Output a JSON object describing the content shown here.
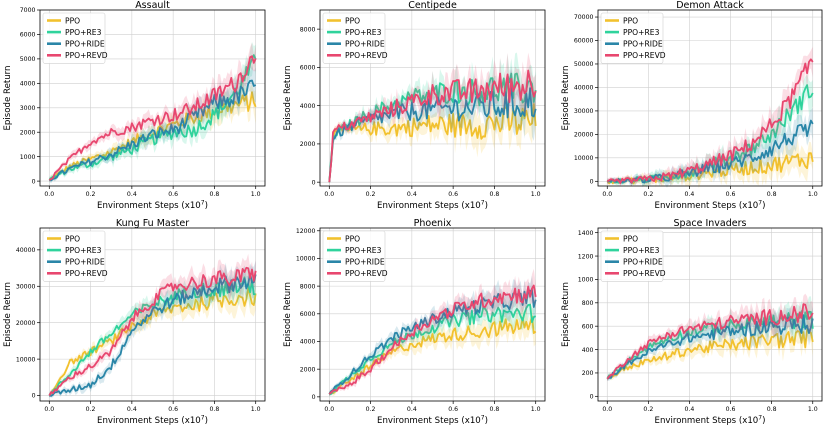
{
  "colors": {
    "PPO": "#f2c12e",
    "PPO+RE3": "#2fd39c",
    "PPO+RIDE": "#2a86a8",
    "PPO+REVD": "#e8476f",
    "grid": "#cfcfcf"
  },
  "chart_data": [
    {
      "type": "line",
      "title": "Assault",
      "xlabel": "Environment Steps (x10^7)",
      "ylabel": "Episode Return",
      "xlim": [
        0,
        1.0
      ],
      "ylim": [
        -200,
        7000
      ],
      "xticks": [
        0.0,
        0.2,
        0.4,
        0.6,
        0.8,
        1.0
      ],
      "xtick_labels": [
        "0.0",
        "0.2",
        "0.4",
        "0.6",
        "0.8",
        "1.0"
      ],
      "yticks": [
        0,
        1000,
        2000,
        3000,
        4000,
        5000,
        6000,
        7000
      ],
      "ytick_labels": [
        "0",
        "1000",
        "2000",
        "3000",
        "4000",
        "5000",
        "6000",
        "7000"
      ],
      "legend": "top-left",
      "grid": true,
      "x": [
        0.0,
        0.1,
        0.2,
        0.3,
        0.4,
        0.5,
        0.6,
        0.7,
        0.8,
        0.9,
        1.0
      ],
      "series": [
        {
          "name": "PPO",
          "values": [
            50,
            600,
            900,
            1200,
            1600,
            2000,
            2300,
            2600,
            2900,
            3100,
            3300
          ]
        },
        {
          "name": "PPO+RE3",
          "values": [
            50,
            500,
            700,
            1000,
            1300,
            1700,
            2000,
            2100,
            2700,
            3600,
            4900
          ]
        },
        {
          "name": "PPO+RIDE",
          "values": [
            50,
            500,
            800,
            1100,
            1500,
            1900,
            2100,
            2600,
            3200,
            3400,
            3900
          ]
        },
        {
          "name": "PPO+REVD",
          "values": [
            50,
            900,
            1600,
            2000,
            2200,
            2500,
            2700,
            3000,
            3500,
            4000,
            5200
          ]
        }
      ]
    },
    {
      "type": "line",
      "title": "Centipede",
      "xlabel": "Environment Steps (x10^7)",
      "ylabel": "Episode Return",
      "xlim": [
        0,
        1.0
      ],
      "ylim": [
        -200,
        9000
      ],
      "xticks": [
        0.0,
        0.2,
        0.4,
        0.6,
        0.8,
        1.0
      ],
      "xtick_labels": [
        "0.0",
        "0.2",
        "0.4",
        "0.6",
        "0.8",
        "1.0"
      ],
      "yticks": [
        0,
        2000,
        4000,
        6000,
        8000
      ],
      "ytick_labels": [
        "0",
        "2000",
        "4000",
        "6000",
        "8000"
      ],
      "legend": "top-left",
      "grid": true,
      "x": [
        0.0,
        0.02,
        0.1,
        0.2,
        0.3,
        0.4,
        0.5,
        0.6,
        0.7,
        0.8,
        0.9,
        1.0
      ],
      "series": [
        {
          "name": "PPO",
          "values": [
            0,
            2600,
            2700,
            2800,
            2800,
            2900,
            3000,
            3000,
            3000,
            3100,
            3100,
            3200
          ]
        },
        {
          "name": "PPO+RE3",
          "values": [
            0,
            2500,
            3000,
            3600,
            4000,
            4400,
            4600,
            4800,
            4700,
            4900,
            4800,
            5000
          ]
        },
        {
          "name": "PPO+RIDE",
          "values": [
            0,
            2400,
            2900,
            3300,
            3500,
            3700,
            3800,
            3900,
            3900,
            4000,
            4100,
            4200
          ]
        },
        {
          "name": "PPO+REVD",
          "values": [
            0,
            2700,
            3000,
            3400,
            3800,
            4200,
            4600,
            4700,
            4700,
            4900,
            5000,
            5300
          ]
        }
      ]
    },
    {
      "type": "line",
      "title": "Demon Attack",
      "xlabel": "Environment Steps (x10^7)",
      "ylabel": "Episode Return",
      "xlim": [
        0,
        1.0
      ],
      "ylim": [
        -2000,
        73000
      ],
      "xticks": [
        0.0,
        0.2,
        0.4,
        0.6,
        0.8,
        1.0
      ],
      "xtick_labels": [
        "0.0",
        "0.2",
        "0.4",
        "0.6",
        "0.8",
        "1.0"
      ],
      "yticks": [
        0,
        10000,
        20000,
        30000,
        40000,
        50000,
        60000,
        70000
      ],
      "ytick_labels": [
        "0",
        "10000",
        "20000",
        "30000",
        "40000",
        "50000",
        "60000",
        "70000"
      ],
      "legend": "top-left",
      "grid": true,
      "x": [
        0.0,
        0.1,
        0.2,
        0.3,
        0.4,
        0.5,
        0.6,
        0.7,
        0.8,
        0.9,
        1.0
      ],
      "series": [
        {
          "name": "PPO",
          "values": [
            0,
            200,
            600,
            1500,
            2500,
            3800,
            5000,
            6000,
            7000,
            8500,
            10000
          ]
        },
        {
          "name": "PPO+RE3",
          "values": [
            0,
            300,
            900,
            2000,
            4000,
            7000,
            10000,
            14000,
            20000,
            30000,
            40000
          ]
        },
        {
          "name": "PPO+RIDE",
          "values": [
            0,
            300,
            800,
            1800,
            3500,
            5500,
            7500,
            10000,
            14000,
            19000,
            22000
          ]
        },
        {
          "name": "PPO+REVD",
          "values": [
            0,
            300,
            900,
            2200,
            4500,
            7500,
            11000,
            16000,
            24000,
            36000,
            52000
          ]
        }
      ]
    },
    {
      "type": "line",
      "title": "Kung Fu Master",
      "xlabel": "Environment Steps (x10^7)",
      "ylabel": "Episode Return",
      "xlim": [
        0,
        1.0
      ],
      "ylim": [
        -1500,
        46000
      ],
      "xticks": [
        0.0,
        0.2,
        0.4,
        0.6,
        0.8,
        1.0
      ],
      "xtick_labels": [
        "0.0",
        "0.2",
        "0.4",
        "0.6",
        "0.8",
        "1.0"
      ],
      "yticks": [
        0,
        10000,
        20000,
        30000,
        40000
      ],
      "ytick_labels": [
        "0",
        "10000",
        "20000",
        "30000",
        "40000"
      ],
      "legend": "top-left",
      "grid": true,
      "x": [
        0.0,
        0.1,
        0.2,
        0.3,
        0.4,
        0.5,
        0.6,
        0.7,
        0.8,
        0.9,
        1.0
      ],
      "series": [
        {
          "name": "PPO",
          "values": [
            0,
            9000,
            12000,
            15000,
            19000,
            22000,
            24000,
            25000,
            26000,
            27000,
            27000
          ]
        },
        {
          "name": "PPO+RE3",
          "values": [
            0,
            6000,
            12000,
            17000,
            22000,
            25000,
            27000,
            29000,
            29000,
            30000,
            30000
          ]
        },
        {
          "name": "PPO+RIDE",
          "values": [
            0,
            1500,
            3000,
            8000,
            18000,
            23000,
            26000,
            28000,
            30000,
            31000,
            32000
          ]
        },
        {
          "name": "PPO+REVD",
          "values": [
            0,
            5000,
            8000,
            12000,
            21000,
            26000,
            30000,
            31000,
            32000,
            32000,
            34000
          ]
        }
      ]
    },
    {
      "type": "line",
      "title": "Phoenix",
      "xlabel": "Environment Steps (x10^7)",
      "ylabel": "Episode Return",
      "xlim": [
        0,
        1.0
      ],
      "ylim": [
        -300,
        12200
      ],
      "xticks": [
        0.0,
        0.2,
        0.4,
        0.6,
        0.8,
        1.0
      ],
      "xtick_labels": [
        "0.0",
        "0.2",
        "0.4",
        "0.6",
        "0.8",
        "1.0"
      ],
      "yticks": [
        0,
        2000,
        4000,
        6000,
        8000,
        10000,
        12000
      ],
      "ytick_labels": [
        "0",
        "2000",
        "4000",
        "6000",
        "8000",
        "10000",
        "12000"
      ],
      "legend": "top-left",
      "grid": true,
      "x": [
        0.0,
        0.1,
        0.2,
        0.3,
        0.4,
        0.5,
        0.6,
        0.7,
        0.8,
        0.9,
        1.0
      ],
      "series": [
        {
          "name": "PPO",
          "values": [
            200,
            1200,
            2200,
            3200,
            3800,
            4200,
            4500,
            4700,
            4900,
            5100,
            5200
          ]
        },
        {
          "name": "PPO+RE3",
          "values": [
            200,
            1500,
            2800,
            3800,
            4500,
            5000,
            5500,
            5800,
            6000,
            6000,
            6100
          ]
        },
        {
          "name": "PPO+RIDE",
          "values": [
            200,
            1600,
            3000,
            4200,
            5000,
            5600,
            6200,
            6500,
            6800,
            7000,
            7200
          ]
        },
        {
          "name": "PPO+REVD",
          "values": [
            200,
            900,
            2000,
            3500,
            4700,
            5600,
            6300,
            6800,
            7200,
            7400,
            7500
          ]
        }
      ]
    },
    {
      "type": "line",
      "title": "Space Invaders",
      "xlabel": "Environment Steps (x10^7)",
      "ylabel": "Episode Return",
      "xlim": [
        0,
        1.0
      ],
      "ylim": [
        -40,
        1440
      ],
      "xticks": [
        0.0,
        0.2,
        0.4,
        0.6,
        0.8,
        1.0
      ],
      "xtick_labels": [
        "0.0",
        "0.2",
        "0.4",
        "0.6",
        "0.8",
        "1.0"
      ],
      "yticks": [
        0,
        200,
        400,
        600,
        800,
        1000,
        1200,
        1400
      ],
      "ytick_labels": [
        "0",
        "200",
        "400",
        "600",
        "800",
        "1000",
        "1200",
        "1400"
      ],
      "legend": "top-left",
      "grid": true,
      "x": [
        0.0,
        0.1,
        0.2,
        0.3,
        0.4,
        0.5,
        0.6,
        0.7,
        0.8,
        0.9,
        1.0
      ],
      "series": [
        {
          "name": "PPO",
          "values": [
            150,
            250,
            300,
            350,
            400,
            420,
            440,
            460,
            480,
            490,
            500
          ]
        },
        {
          "name": "PPO+RE3",
          "values": [
            150,
            300,
            420,
            500,
            550,
            580,
            600,
            620,
            640,
            650,
            660
          ]
        },
        {
          "name": "PPO+RIDE",
          "values": [
            150,
            280,
            380,
            450,
            500,
            530,
            560,
            580,
            600,
            610,
            620
          ]
        },
        {
          "name": "PPO+REVD",
          "values": [
            150,
            320,
            450,
            530,
            580,
            610,
            640,
            660,
            680,
            700,
            720
          ]
        }
      ]
    }
  ]
}
